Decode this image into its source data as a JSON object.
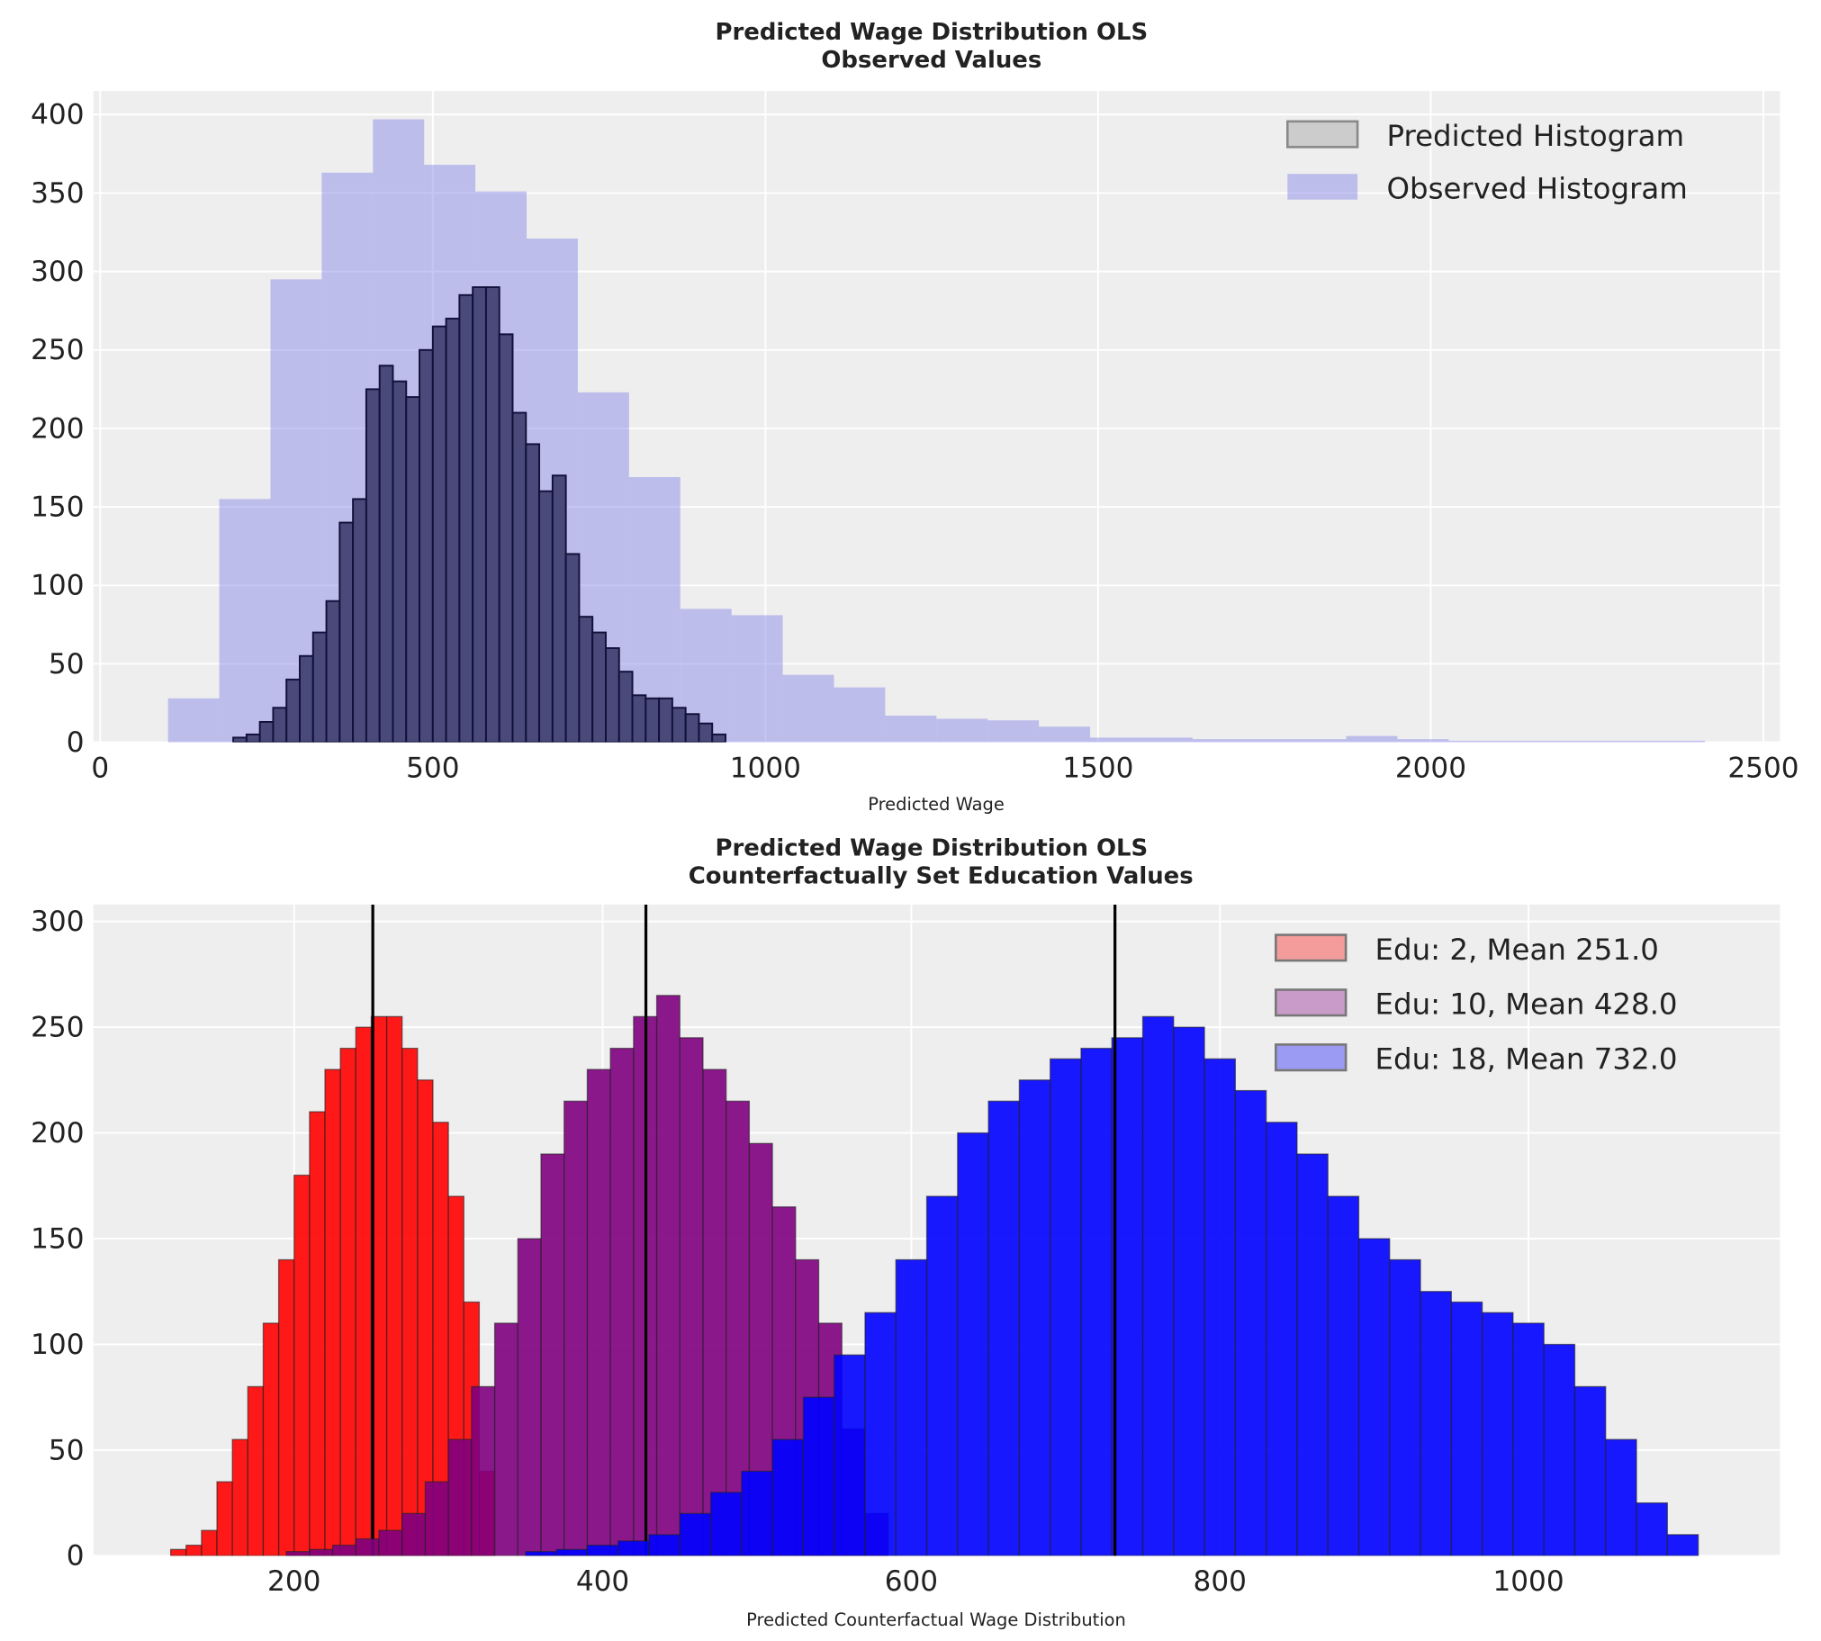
{
  "chart_data": [
    {
      "type": "bar",
      "title_line1": "Predicted Wage Distribution OLS",
      "title_line2": "Observed Values",
      "xlabel": "Predicted Wage",
      "ylabel": "",
      "xlim": [
        -10,
        2525
      ],
      "ylim": [
        0,
        415
      ],
      "xticks": [
        0,
        500,
        1000,
        1500,
        2000,
        2500
      ],
      "yticks": [
        0,
        50,
        100,
        150,
        200,
        250,
        300,
        350,
        400
      ],
      "grid": true,
      "legend_position": "top-right",
      "series": [
        {
          "name": "Predicted Histogram",
          "color": "#1a1a4a",
          "bin_start": 200,
          "bin_width": 20,
          "values": [
            3,
            5,
            13,
            22,
            40,
            55,
            70,
            90,
            140,
            155,
            225,
            240,
            230,
            220,
            250,
            265,
            270,
            285,
            290,
            290,
            260,
            210,
            190,
            160,
            170,
            120,
            80,
            70,
            60,
            45,
            30,
            28,
            28,
            22,
            18,
            12,
            5
          ]
        },
        {
          "name": "Observed Histogram",
          "color": "#8080e6",
          "bin_start": 102,
          "bin_width": 77,
          "values": [
            28,
            155,
            295,
            363,
            397,
            368,
            351,
            321,
            223,
            169,
            85,
            81,
            43,
            35,
            17,
            15,
            14,
            10,
            3,
            3,
            2,
            2,
            2,
            4,
            2,
            1,
            1,
            1,
            1,
            1
          ]
        }
      ]
    },
    {
      "type": "bar",
      "title_line1": "Predicted Wage Distribution OLS",
      "title_line2": "Counterfactually Set Education Values",
      "xlabel": "Predicted Counterfactual Wage Distribution",
      "ylabel": "",
      "xlim": [
        70,
        1163
      ],
      "ylim": [
        0,
        308
      ],
      "xticks": [
        200,
        400,
        600,
        800,
        1000
      ],
      "yticks": [
        0,
        50,
        100,
        150,
        200,
        250,
        300
      ],
      "grid": true,
      "legend_position": "top-right",
      "series": [
        {
          "name": "Edu: 2, Mean 251.0",
          "color": "#ff0000",
          "mean": 251.0,
          "bin_start": 120,
          "bin_width": 10,
          "values": [
            3,
            5,
            12,
            35,
            55,
            80,
            110,
            140,
            180,
            210,
            230,
            240,
            250,
            255,
            255,
            240,
            225,
            205,
            170,
            120,
            40
          ]
        },
        {
          "name": "Edu: 10, Mean 428.0",
          "color": "#800080",
          "mean": 428.0,
          "bin_start": 195,
          "bin_width": 15,
          "values": [
            2,
            3,
            5,
            8,
            12,
            20,
            35,
            55,
            80,
            110,
            150,
            190,
            215,
            230,
            240,
            255,
            265,
            245,
            230,
            215,
            195,
            165,
            140,
            110,
            60,
            20
          ]
        },
        {
          "name": "Edu: 18, Mean 732.0",
          "color": "#0000ff",
          "mean": 732.0,
          "bin_start": 350,
          "bin_width": 20,
          "values": [
            2,
            3,
            5,
            7,
            10,
            20,
            30,
            40,
            55,
            75,
            95,
            115,
            140,
            170,
            200,
            215,
            225,
            235,
            240,
            245,
            255,
            250,
            235,
            220,
            205,
            190,
            170,
            150,
            140,
            125,
            120,
            115,
            110,
            100,
            80,
            55,
            25,
            10
          ]
        }
      ]
    }
  ]
}
